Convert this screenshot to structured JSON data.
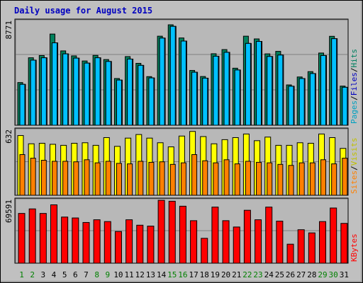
{
  "title": "Daily usage for August 2015",
  "colors": {
    "background": "#c0c0c0",
    "panel": "#b8b8b8",
    "title": "#0000c0",
    "hits": "#00805c",
    "files": "#0080ff",
    "pages": "#00c0ff",
    "visits": "#ffff00",
    "sites": "#ff8000",
    "kbytes": "#ff0000",
    "weekend_day": "#008000",
    "weekday_day": "#000000"
  },
  "chart_data": [
    {
      "type": "bar",
      "panel": "top",
      "ylabel_max": "8771",
      "ymax": 8771,
      "legend": [
        {
          "text": "Pages",
          "color": "#00a0c0"
        },
        {
          "text": "/",
          "color": "#000000"
        },
        {
          "text": "Files",
          "color": "#0000c0"
        },
        {
          "text": "/",
          "color": "#000000"
        },
        {
          "text": "Hits",
          "color": "#008060"
        }
      ],
      "categories": [
        "1",
        "2",
        "3",
        "4",
        "5",
        "6",
        "7",
        "8",
        "9",
        "10",
        "11",
        "12",
        "13",
        "14",
        "15",
        "16",
        "17",
        "18",
        "19",
        "20",
        "21",
        "22",
        "23",
        "24",
        "25",
        "26",
        "27",
        "28",
        "29",
        "30",
        "31"
      ],
      "series": [
        {
          "name": "Hits",
          "values": [
            3600,
            5690,
            5880,
            7690,
            6270,
            5850,
            5420,
            5890,
            5540,
            3940,
            5790,
            5220,
            4100,
            7510,
            8470,
            7360,
            4620,
            4110,
            6030,
            6380,
            4810,
            7510,
            7280,
            6020,
            6230,
            3400,
            4070,
            4520,
            6090,
            7500,
            3300
          ]
        },
        {
          "name": "Files",
          "values": [
            3450,
            5490,
            5690,
            6950,
            6020,
            5660,
            5240,
            5690,
            5380,
            3810,
            5580,
            5050,
            3990,
            7350,
            8340,
            7100,
            4470,
            3970,
            5820,
            6150,
            4660,
            6900,
            7070,
            5800,
            5920,
            3290,
            3940,
            4360,
            5880,
            7300,
            3200
          ]
        },
        {
          "name": "Pages",
          "values": [
            3450,
            5490,
            5690,
            6950,
            6020,
            5660,
            5240,
            5690,
            5380,
            3810,
            5580,
            5050,
            3990,
            7350,
            8340,
            7100,
            4470,
            3970,
            5820,
            6150,
            4660,
            6900,
            7070,
            5800,
            5920,
            3290,
            3940,
            4360,
            5880,
            7300,
            3200
          ]
        }
      ]
    },
    {
      "type": "bar",
      "panel": "middle",
      "ylabel_max": "632",
      "ymax": 632,
      "legend": [
        {
          "text": "Sites",
          "color": "#ff8000"
        },
        {
          "text": "/",
          "color": "#000000"
        },
        {
          "text": "Visits",
          "color": "#c0c000"
        }
      ],
      "categories": [
        "1",
        "2",
        "3",
        "4",
        "5",
        "6",
        "7",
        "8",
        "9",
        "10",
        "11",
        "12",
        "13",
        "14",
        "15",
        "16",
        "17",
        "18",
        "19",
        "20",
        "21",
        "22",
        "23",
        "24",
        "25",
        "26",
        "27",
        "28",
        "29",
        "30",
        "31"
      ],
      "series": [
        {
          "name": "Visits",
          "values": [
            580,
            500,
            505,
            495,
            485,
            505,
            510,
            485,
            560,
            475,
            555,
            590,
            555,
            510,
            470,
            575,
            620,
            570,
            500,
            540,
            560,
            595,
            530,
            565,
            485,
            485,
            510,
            505,
            595,
            560,
            455
          ]
        },
        {
          "name": "Sites",
          "values": [
            395,
            360,
            340,
            330,
            330,
            325,
            345,
            315,
            330,
            310,
            305,
            330,
            320,
            325,
            300,
            315,
            395,
            335,
            315,
            345,
            305,
            330,
            320,
            315,
            300,
            290,
            315,
            315,
            345,
            305,
            360
          ]
        }
      ]
    },
    {
      "type": "bar",
      "panel": "bottom",
      "ylabel_max": "69591",
      "ymax": 69591,
      "legend": [
        {
          "text": "KBytes",
          "color": "#ff0000"
        }
      ],
      "categories": [
        "1",
        "2",
        "3",
        "4",
        "5",
        "6",
        "7",
        "8",
        "9",
        "10",
        "11",
        "12",
        "13",
        "14",
        "15",
        "16",
        "17",
        "18",
        "19",
        "20",
        "21",
        "22",
        "23",
        "24",
        "25",
        "26",
        "27",
        "28",
        "29",
        "30",
        "31"
      ],
      "series": [
        {
          "name": "KBytes",
          "values": [
            55000,
            60000,
            55000,
            64500,
            51000,
            50000,
            45000,
            48000,
            46000,
            35000,
            48000,
            42000,
            41000,
            69500,
            68500,
            63000,
            47000,
            27500,
            62000,
            47000,
            40000,
            58500,
            48000,
            62000,
            46500,
            21000,
            37000,
            33500,
            46000,
            61000,
            44000
          ]
        }
      ]
    }
  ],
  "days": [
    {
      "label": "1",
      "weekend": true
    },
    {
      "label": "2",
      "weekend": true
    },
    {
      "label": "3",
      "weekend": false
    },
    {
      "label": "4",
      "weekend": false
    },
    {
      "label": "5",
      "weekend": false
    },
    {
      "label": "6",
      "weekend": false
    },
    {
      "label": "7",
      "weekend": false
    },
    {
      "label": "8",
      "weekend": true
    },
    {
      "label": "9",
      "weekend": true
    },
    {
      "label": "10",
      "weekend": false
    },
    {
      "label": "11",
      "weekend": false
    },
    {
      "label": "12",
      "weekend": false
    },
    {
      "label": "13",
      "weekend": false
    },
    {
      "label": "14",
      "weekend": false
    },
    {
      "label": "15",
      "weekend": true
    },
    {
      "label": "16",
      "weekend": true
    },
    {
      "label": "17",
      "weekend": false
    },
    {
      "label": "18",
      "weekend": false
    },
    {
      "label": "19",
      "weekend": false
    },
    {
      "label": "20",
      "weekend": false
    },
    {
      "label": "21",
      "weekend": false
    },
    {
      "label": "22",
      "weekend": true
    },
    {
      "label": "23",
      "weekend": true
    },
    {
      "label": "24",
      "weekend": false
    },
    {
      "label": "25",
      "weekend": false
    },
    {
      "label": "26",
      "weekend": false
    },
    {
      "label": "27",
      "weekend": false
    },
    {
      "label": "28",
      "weekend": false
    },
    {
      "label": "29",
      "weekend": true
    },
    {
      "label": "30",
      "weekend": true
    },
    {
      "label": "31",
      "weekend": false
    }
  ]
}
